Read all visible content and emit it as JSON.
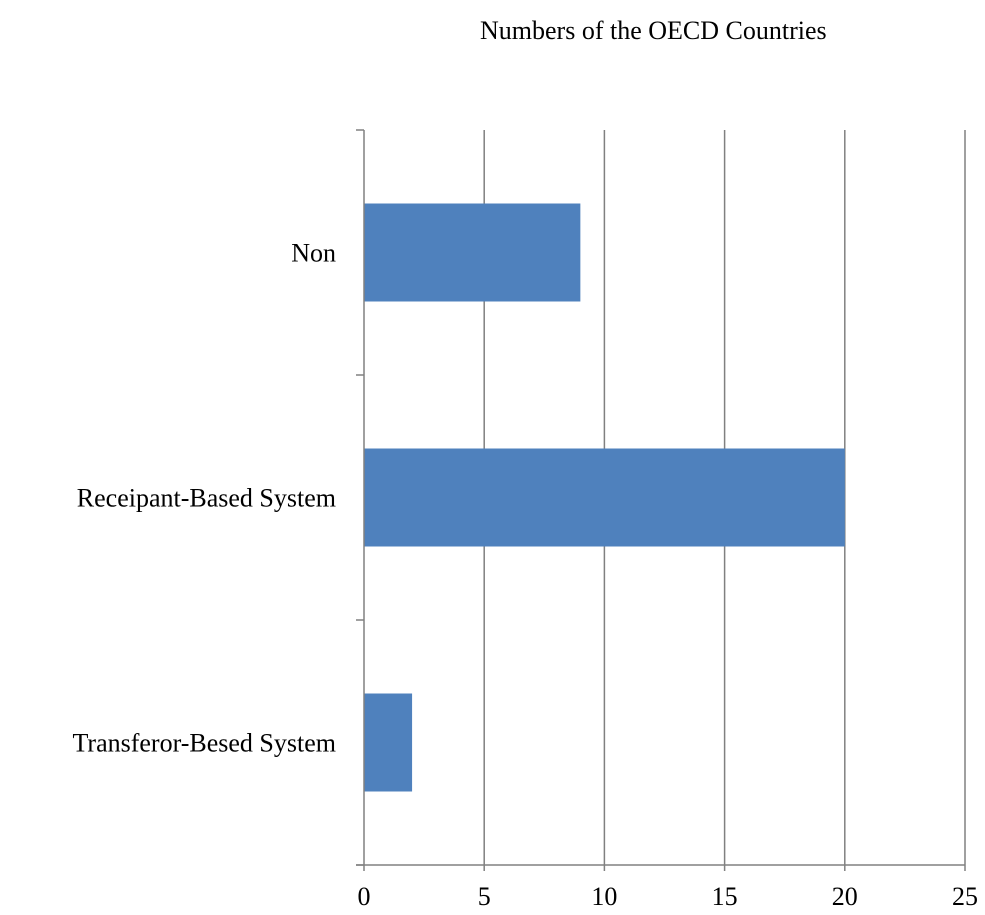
{
  "chart_data": {
    "type": "bar",
    "orientation": "horizontal",
    "title": "Numbers of the OECD Countries",
    "categories": [
      "Non",
      "Receipant-Based System",
      "Transferor-Besed System"
    ],
    "values": [
      9,
      20,
      2
    ],
    "xlim": [
      0,
      25
    ],
    "x_ticks": [
      "0",
      "5",
      "10",
      "15",
      "20",
      "25"
    ],
    "grid": "vertical",
    "legend": "none",
    "bar_color": "#4F81BD",
    "grid_color": "#808080"
  }
}
